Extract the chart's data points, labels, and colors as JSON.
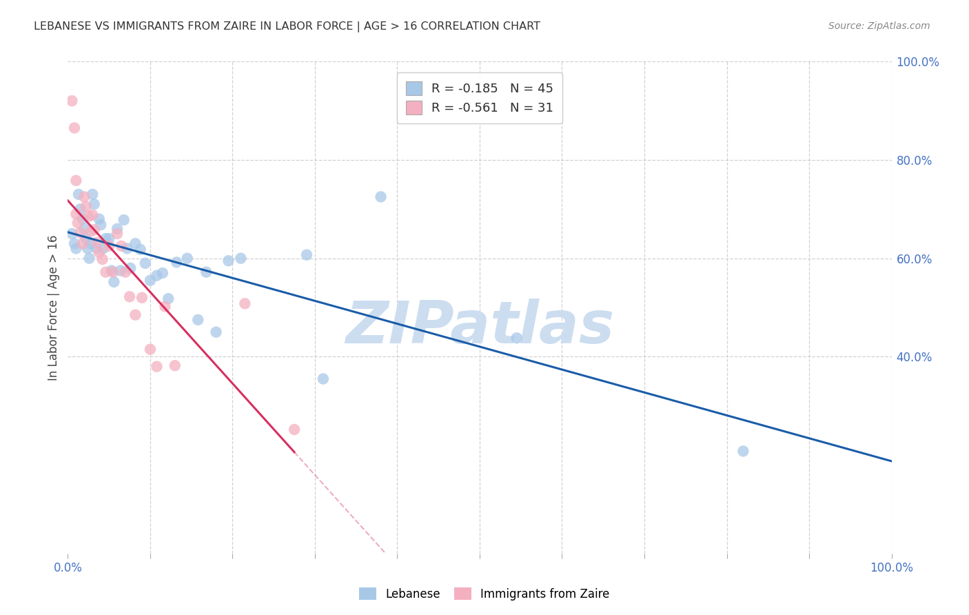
{
  "title": "LEBANESE VS IMMIGRANTS FROM ZAIRE IN LABOR FORCE | AGE > 16 CORRELATION CHART",
  "source": "Source: ZipAtlas.com",
  "ylabel": "In Labor Force | Age > 16",
  "xlim": [
    0,
    1.0
  ],
  "ylim": [
    0,
    1.0
  ],
  "xticks": [
    0.0,
    0.1,
    0.2,
    0.3,
    0.4,
    0.5,
    0.6,
    0.7,
    0.8,
    0.9,
    1.0
  ],
  "xticklabels": [
    "0.0%",
    "",
    "",
    "",
    "",
    "",
    "",
    "",
    "",
    "",
    "100.0%"
  ],
  "ytick_positions": [
    0.4,
    0.6,
    0.8,
    1.0
  ],
  "ytick_labels": [
    "40.0%",
    "60.0%",
    "80.0%",
    "100.0%"
  ],
  "background_color": "#ffffff",
  "grid_color": "#cccccc",
  "watermark_text": "ZIPatlas",
  "watermark_color": "#ccddf0",
  "legend_R1": "-0.185",
  "legend_N1": "45",
  "legend_R2": "-0.561",
  "legend_N2": "31",
  "blue_fill": "#a8c8e8",
  "pink_fill": "#f4b0c0",
  "blue_line_color": "#1a5ca8",
  "pink_line_color": "#d63060",
  "tick_color": "#4472c4",
  "title_color": "#333333",
  "source_color": "#888888",
  "label_color": "#444444",
  "blue_points_x": [
    0.005,
    0.008,
    0.01,
    0.013,
    0.015,
    0.018,
    0.02,
    0.022,
    0.024,
    0.026,
    0.028,
    0.03,
    0.032,
    0.035,
    0.038,
    0.04,
    0.043,
    0.046,
    0.05,
    0.053,
    0.056,
    0.06,
    0.064,
    0.068,
    0.072,
    0.076,
    0.082,
    0.088,
    0.094,
    0.1,
    0.108,
    0.115,
    0.122,
    0.132,
    0.145,
    0.158,
    0.168,
    0.18,
    0.195,
    0.21,
    0.29,
    0.31,
    0.38,
    0.545,
    0.82
  ],
  "blue_points_y": [
    0.65,
    0.63,
    0.62,
    0.73,
    0.7,
    0.68,
    0.66,
    0.64,
    0.62,
    0.6,
    0.63,
    0.73,
    0.71,
    0.62,
    0.68,
    0.668,
    0.62,
    0.64,
    0.64,
    0.575,
    0.552,
    0.66,
    0.575,
    0.678,
    0.62,
    0.58,
    0.63,
    0.618,
    0.59,
    0.555,
    0.565,
    0.57,
    0.518,
    0.592,
    0.6,
    0.475,
    0.572,
    0.45,
    0.595,
    0.6,
    0.607,
    0.355,
    0.725,
    0.438,
    0.208
  ],
  "pink_points_x": [
    0.005,
    0.008,
    0.01,
    0.012,
    0.015,
    0.018,
    0.02,
    0.022,
    0.025,
    0.028,
    0.03,
    0.032,
    0.035,
    0.038,
    0.042,
    0.046,
    0.05,
    0.055,
    0.06,
    0.065,
    0.07,
    0.075,
    0.082,
    0.09,
    0.1,
    0.108,
    0.118,
    0.13,
    0.215,
    0.275,
    0.01
  ],
  "pink_points_y": [
    0.92,
    0.865,
    0.69,
    0.672,
    0.652,
    0.63,
    0.725,
    0.705,
    0.685,
    0.655,
    0.688,
    0.658,
    0.632,
    0.612,
    0.598,
    0.572,
    0.625,
    0.572,
    0.65,
    0.625,
    0.572,
    0.522,
    0.485,
    0.52,
    0.415,
    0.38,
    0.502,
    0.382,
    0.508,
    0.252,
    0.758
  ]
}
